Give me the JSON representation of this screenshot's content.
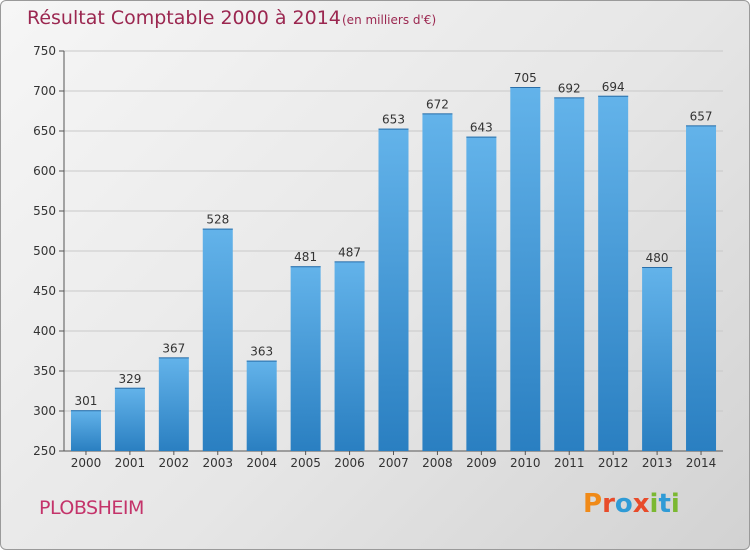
{
  "header": {
    "title": "Résultat Comptable 2000 à 2014",
    "unit": "(en milliers d'€)"
  },
  "footer": {
    "place": "PLOBSHEIM",
    "logo": "Proxiti"
  },
  "colors": {
    "title": "#9b2750",
    "place": "#c4336a",
    "bar_light": "#63b3ea",
    "bar_dark": "#2a7fc1",
    "logo": [
      "#f08a18",
      "#e84b2a",
      "#2f9bd6",
      "#e84b2a",
      "#7bb832",
      "#2f9bd6",
      "#7bb832"
    ]
  },
  "chart_data": {
    "type": "bar",
    "title": "Résultat Comptable 2000 à 2014",
    "unit": "(en milliers d'€)",
    "categories": [
      "2000",
      "2001",
      "2002",
      "2003",
      "2004",
      "2005",
      "2006",
      "2007",
      "2008",
      "2009",
      "2010",
      "2011",
      "2012",
      "2013",
      "2014"
    ],
    "values": [
      301,
      329,
      367,
      528,
      363,
      481,
      487,
      653,
      672,
      643,
      705,
      692,
      694,
      480,
      657
    ],
    "ylim": [
      250,
      750
    ],
    "yticks": [
      250,
      300,
      350,
      400,
      450,
      500,
      550,
      600,
      650,
      700,
      750
    ],
    "grid": true,
    "data_labels": true
  }
}
